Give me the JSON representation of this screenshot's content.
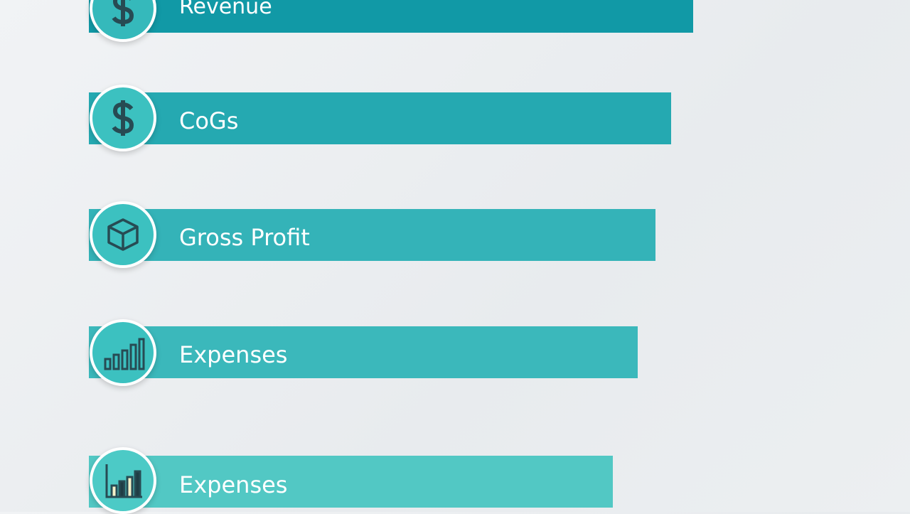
{
  "items": [
    {
      "label": "Revenue"
    },
    {
      "label": "CoGs"
    },
    {
      "label": "Gross Profit"
    },
    {
      "label": "Expenses"
    },
    {
      "label": "Expenses"
    }
  ]
}
